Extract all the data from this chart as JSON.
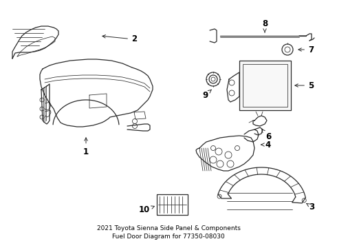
{
  "title": "2021 Toyota Sienna Side Panel & Components\nFuel Door Diagram for 77350-08030",
  "title_fontsize": 6.5,
  "background_color": "#ffffff",
  "line_color": "#2a2a2a",
  "label_color": "#000000",
  "label_fontsize": 8.5,
  "figsize": [
    4.9,
    3.6
  ],
  "dpi": 100
}
